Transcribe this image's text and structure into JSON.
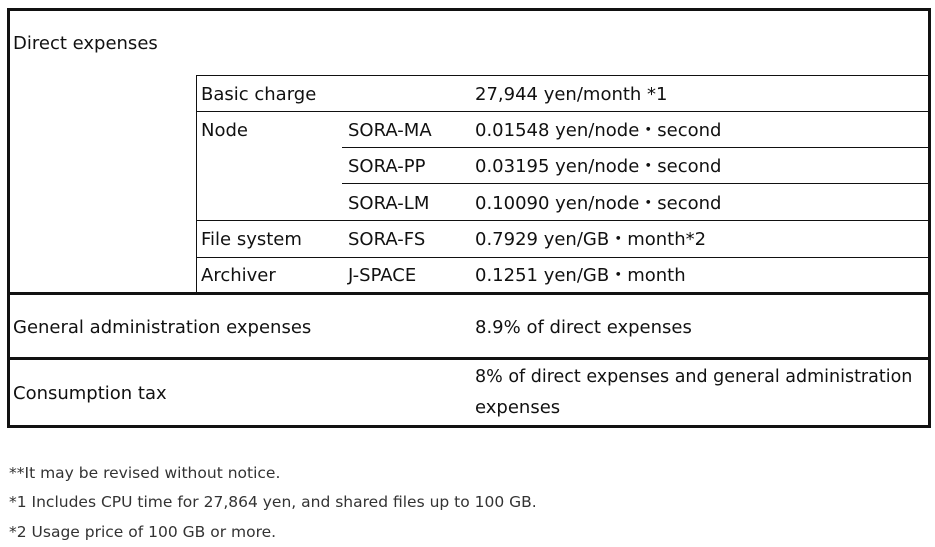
{
  "direct_expenses": {
    "label": "Direct expenses",
    "basic_charge": {
      "label": "Basic charge",
      "price": "27,944 yen/month *1"
    },
    "node": {
      "label": "Node",
      "rows": [
        {
          "system": "SORA-MA",
          "price": "0.01548 yen/node・second"
        },
        {
          "system": "SORA-PP",
          "price": "0.03195 yen/node・second"
        },
        {
          "system": "SORA-LM",
          "price": "0.10090 yen/node・second"
        }
      ]
    },
    "file_system": {
      "label": "File system",
      "system": "SORA-FS",
      "price": "0.7929 yen/GB・month*2"
    },
    "archiver": {
      "label": "Archiver",
      "system": "J-SPACE",
      "price": "0.1251 yen/GB・month"
    }
  },
  "general_admin": {
    "label": "General administration expenses",
    "price": "8.9% of direct expenses"
  },
  "consumption_tax": {
    "label": "Consumption tax",
    "price_line1": "8% of direct expenses and general administration",
    "price_line2": "expenses"
  },
  "notes": [
    "**It may be revised without notice.",
    "*1 Includes CPU time for 27,864 yen, and shared files up to 100 GB.",
    "*2 Usage price of 100 GB or more."
  ]
}
